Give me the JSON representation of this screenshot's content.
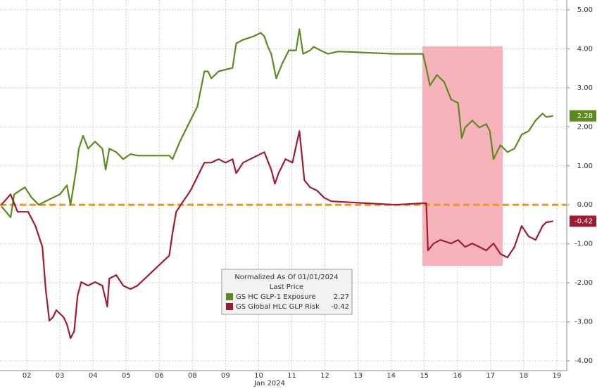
{
  "chart_data": {
    "type": "line",
    "xlabel": "Jan 2024",
    "legend_title": "Normalized As Of 01/01/2024",
    "legend_subtitle": "Last Price",
    "xlim": [
      -0.81,
      16.3
    ],
    "ylim": [
      -4.25,
      5.25
    ],
    "xticks": [
      {
        "value": 0,
        "label": "02"
      },
      {
        "value": 1,
        "label": "03"
      },
      {
        "value": 2,
        "label": "04"
      },
      {
        "value": 3,
        "label": "05"
      },
      {
        "value": 4,
        "label": "06"
      },
      {
        "value": 5,
        "label": "08"
      },
      {
        "value": 6,
        "label": "09"
      },
      {
        "value": 7,
        "label": "10"
      },
      {
        "value": 8,
        "label": "11"
      },
      {
        "value": 9,
        "label": "12"
      },
      {
        "value": 10,
        "label": "13"
      },
      {
        "value": 11,
        "label": "14"
      },
      {
        "value": 12,
        "label": "15"
      },
      {
        "value": 13,
        "label": "16"
      },
      {
        "value": 14,
        "label": "17"
      },
      {
        "value": 15,
        "label": "18"
      },
      {
        "value": 16,
        "label": "19"
      }
    ],
    "yticks": [
      {
        "value": 5,
        "label": "5.00"
      },
      {
        "value": 4,
        "label": "4.00"
      },
      {
        "value": 3,
        "label": "3.00"
      },
      {
        "value": 2,
        "label": "2.00"
      },
      {
        "value": 1,
        "label": "1.00"
      },
      {
        "value": 0,
        "label": "0.00"
      },
      {
        "value": -1,
        "label": "-1.00"
      },
      {
        "value": -2,
        "label": "-2.00"
      },
      {
        "value": -3,
        "label": "-3.00"
      },
      {
        "value": -4,
        "label": "-4.00"
      }
    ],
    "grid": true,
    "reference_line": {
      "value": 0,
      "color": "#f0961e"
    },
    "series": [
      {
        "name": "GS HC GLP-1 Exposure",
        "color": "#5c8a1e",
        "last_price": 2.27,
        "end_badge": 2.28,
        "x": [
          -0.77,
          -0.49,
          -0.38,
          -0.06,
          0.15,
          0.36,
          0.68,
          1.0,
          1.21,
          1.32,
          1.49,
          1.57,
          1.7,
          1.85,
          2.06,
          2.28,
          2.38,
          2.49,
          2.7,
          2.91,
          3.13,
          3.34,
          4.3,
          4.4,
          4.62,
          4.83,
          5.15,
          5.36,
          5.47,
          5.57,
          5.79,
          6.21,
          6.32,
          6.53,
          6.85,
          7.06,
          7.17,
          7.28,
          7.38,
          7.53,
          7.7,
          7.91,
          8.13,
          8.23,
          8.34,
          8.55,
          8.66,
          8.87,
          9.09,
          9.4,
          11.11,
          11.74,
          11.96,
          12.06,
          12.17,
          12.38,
          12.6,
          12.81,
          13.02,
          13.13,
          13.23,
          13.45,
          13.66,
          13.87,
          13.98,
          14.09,
          14.3,
          14.51,
          14.72,
          14.94,
          15.15,
          15.36,
          15.57,
          15.68,
          15.89
        ],
        "values": [
          -0.04,
          -0.32,
          0.27,
          0.45,
          0.18,
          0,
          0.14,
          0.27,
          0.5,
          0,
          0.9,
          1.44,
          1.77,
          1.44,
          1.62,
          1.44,
          0.9,
          1.44,
          1.35,
          1.17,
          1.3,
          1.26,
          1.26,
          1.17,
          1.62,
          1.98,
          2.52,
          3.42,
          3.42,
          3.24,
          3.42,
          3.51,
          4.14,
          4.23,
          4.32,
          4.41,
          4.32,
          4.05,
          3.87,
          3.24,
          3.6,
          3.96,
          3.96,
          4.5,
          3.87,
          3.96,
          4.05,
          3.96,
          3.87,
          3.93,
          3.87,
          3.87,
          3.87,
          3.51,
          3.06,
          3.33,
          3.15,
          2.7,
          2.61,
          1.71,
          1.98,
          2.16,
          1.98,
          2.07,
          1.89,
          1.17,
          1.53,
          1.35,
          1.44,
          1.8,
          1.89,
          2.16,
          2.34,
          2.25,
          2.28
        ]
      },
      {
        "name": "GS Global HLC GLP Risk",
        "color": "#9e1b32",
        "last_price": -0.42,
        "end_badge": -0.42,
        "x": [
          -0.77,
          -0.49,
          -0.28,
          0.04,
          0.26,
          0.47,
          0.57,
          0.68,
          0.79,
          0.89,
          1.11,
          1.21,
          1.32,
          1.43,
          1.53,
          1.64,
          1.85,
          2.06,
          2.28,
          2.43,
          2.49,
          2.7,
          2.91,
          3.13,
          3.34,
          4.3,
          4.4,
          4.51,
          4.72,
          4.94,
          5.15,
          5.36,
          5.57,
          5.79,
          6.0,
          6.21,
          6.32,
          6.53,
          6.74,
          6.96,
          7.17,
          7.38,
          7.49,
          7.6,
          7.81,
          8.02,
          8.23,
          8.38,
          8.55,
          8.77,
          8.98,
          9.19,
          11.11,
          11.96,
          12.06,
          12.11,
          12.28,
          12.49,
          12.81,
          13.02,
          13.23,
          13.45,
          13.66,
          13.87,
          14.09,
          14.3,
          14.51,
          14.72,
          14.94,
          15.15,
          15.36,
          15.57,
          15.68,
          15.89
        ],
        "values": [
          0,
          0.27,
          -0.18,
          -0.18,
          -0.54,
          -1.08,
          -2.16,
          -2.97,
          -2.88,
          -2.7,
          -2.88,
          -3.06,
          -3.42,
          -3.24,
          -2.34,
          -1.98,
          -2.07,
          -1.98,
          -2.07,
          -2.61,
          -1.89,
          -1.8,
          -2.07,
          -2.16,
          -2.07,
          -1.3,
          -0.72,
          -0.18,
          0.09,
          0.36,
          0.72,
          1.08,
          1.08,
          1.17,
          1.08,
          1.17,
          0.81,
          1.08,
          1.17,
          1.26,
          1.35,
          0.9,
          0.54,
          0.81,
          1.17,
          1.08,
          1.89,
          0.63,
          0.45,
          0.36,
          0.18,
          0.09,
          0,
          0.04,
          0.04,
          -1.17,
          -0.99,
          -0.9,
          -0.99,
          -0.9,
          -1.08,
          -0.99,
          -1.08,
          -1.17,
          -0.99,
          -1.26,
          -1.35,
          -1.08,
          -0.54,
          -0.81,
          -0.9,
          -0.54,
          -0.45,
          -0.42
        ]
      }
    ]
  }
}
